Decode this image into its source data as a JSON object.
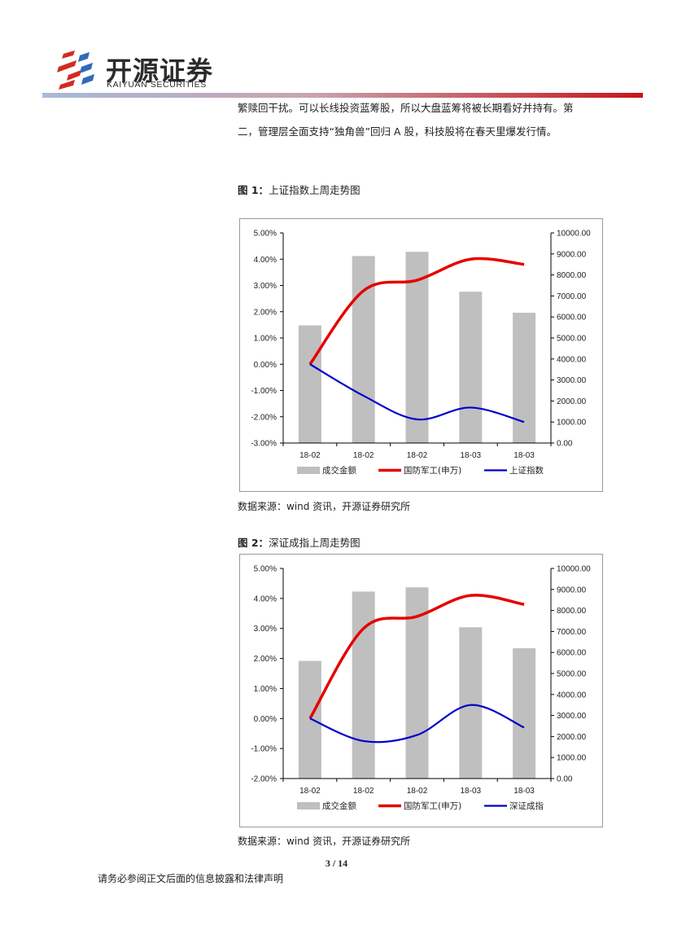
{
  "header": {
    "logo_cn": "开源证券",
    "logo_en": "KAIYUAN SECURITIES"
  },
  "body": {
    "line1": "繁赎回干扰。可以长线投资蓝筹股，所以大盘蓝筹将被长期看好并持有。第",
    "line2": "二，管理层全面支持“独角兽”回归 A 股，科技股将在春天里爆发行情。"
  },
  "figures": [
    {
      "label": "图 1：",
      "title": "上证指数上周走势图",
      "source": "数据来源：wind 资讯，开源证券研究所"
    },
    {
      "label": "图 2：",
      "title": "深证成指上周走势图",
      "source": "数据来源：wind 资讯，开源证券研究所"
    }
  ],
  "chart_data": [
    {
      "type": "bar",
      "categories": [
        "18-02",
        "18-02",
        "18-02",
        "18-03",
        "18-03"
      ],
      "left_axis": {
        "min": -3,
        "max": 5,
        "step": 1,
        "format": "percent",
        "ticks": [
          "5.00%",
          "4.00%",
          "3.00%",
          "2.00%",
          "1.00%",
          "0.00%",
          "-1.00%",
          "-2.00%",
          "-3.00%"
        ]
      },
      "right_axis": {
        "min": 0,
        "max": 10000,
        "step": 1000,
        "ticks": [
          "10000.00",
          "9000.00",
          "8000.00",
          "7000.00",
          "6000.00",
          "5000.00",
          "4000.00",
          "3000.00",
          "2000.00",
          "1000.00",
          "0.00"
        ]
      },
      "series": [
        {
          "name": "成交金额",
          "kind": "bar",
          "axis": "right",
          "color": "#bfbfbf",
          "values": [
            5600,
            8900,
            9100,
            7200,
            6200
          ]
        },
        {
          "name": "国防军工(申万)",
          "kind": "line",
          "axis": "left",
          "color": "#e60000",
          "values": [
            0.0,
            2.8,
            3.2,
            4.0,
            3.8
          ]
        },
        {
          "name": "上证指数",
          "kind": "line",
          "axis": "left",
          "color": "#0000cc",
          "values": [
            0.0,
            -1.2,
            -2.1,
            -1.65,
            -2.2
          ]
        }
      ]
    },
    {
      "type": "bar",
      "categories": [
        "18-02",
        "18-02",
        "18-02",
        "18-03",
        "18-03"
      ],
      "left_axis": {
        "min": -2,
        "max": 5,
        "step": 1,
        "format": "percent",
        "ticks": [
          "5.00%",
          "4.00%",
          "3.00%",
          "2.00%",
          "1.00%",
          "0.00%",
          "-1.00%",
          "-2.00%"
        ]
      },
      "right_axis": {
        "min": 0,
        "max": 10000,
        "step": 1000,
        "ticks": [
          "10000.00",
          "9000.00",
          "8000.00",
          "7000.00",
          "6000.00",
          "5000.00",
          "4000.00",
          "3000.00",
          "2000.00",
          "1000.00",
          "0.00"
        ]
      },
      "series": [
        {
          "name": "成交金额",
          "kind": "bar",
          "axis": "right",
          "color": "#bfbfbf",
          "values": [
            5600,
            8900,
            9100,
            7200,
            6200
          ]
        },
        {
          "name": "国防军工(申万)",
          "kind": "line",
          "axis": "left",
          "color": "#e60000",
          "values": [
            0.0,
            3.0,
            3.4,
            4.1,
            3.8
          ]
        },
        {
          "name": "深证成指",
          "kind": "line",
          "axis": "left",
          "color": "#0000cc",
          "values": [
            0.0,
            -0.75,
            -0.55,
            0.45,
            -0.3
          ]
        }
      ]
    }
  ],
  "page": {
    "number": "3 / 14"
  },
  "footer": {
    "disclaimer": "请务必参阅正文后面的信息披露和法律声明"
  }
}
